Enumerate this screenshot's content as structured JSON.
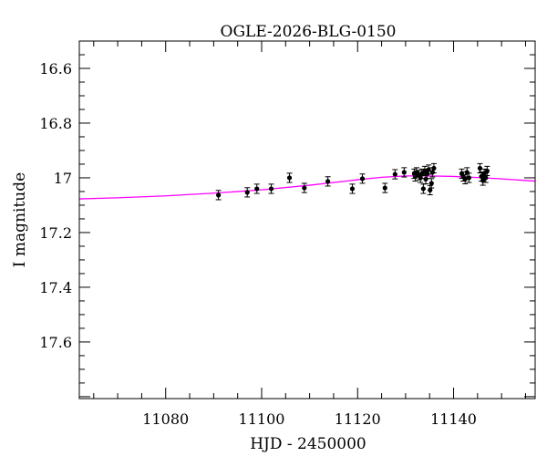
{
  "chart_data": {
    "type": "scatter",
    "title": "OGLE-2026-BLG-0150",
    "xlabel": "HJD - 2450000",
    "ylabel": "I magnitude",
    "xlim": [
      11062,
      11157
    ],
    "ylim": [
      17.807,
      16.5
    ],
    "y_inverted": true,
    "xticks": [
      11080,
      11100,
      11120,
      11140
    ],
    "xtick_labels": [
      "11080",
      "11100",
      "11120",
      "11140"
    ],
    "yticks": [
      16.6,
      16.8,
      17.0,
      17.2,
      17.4,
      17.6
    ],
    "ytick_labels": [
      "16.6",
      "16.8",
      "17",
      "17.2",
      "17.4",
      "17.6"
    ],
    "grid": false,
    "model_color": "#ff00ff",
    "point_color": "#000000",
    "series": [
      {
        "name": "data",
        "x": [
          11091.0,
          11097.0,
          11099.0,
          11102.0,
          11105.8,
          11108.9,
          11113.8,
          11118.9,
          11121.0,
          11125.7,
          11127.8,
          11129.7,
          11131.8,
          11132.0,
          11132.3,
          11132.8,
          11133.1,
          11133.4,
          11133.7,
          11134.0,
          11134.2,
          11134.5,
          11134.8,
          11135.1,
          11135.4,
          11135.6,
          11135.9,
          11141.7,
          11142.0,
          11142.4,
          11142.8,
          11143.2,
          11145.5,
          11145.8,
          11146.1,
          11146.4,
          11146.7,
          11147.0
        ],
        "y": [
          17.063,
          17.053,
          17.04,
          17.04,
          17.0,
          17.037,
          17.013,
          17.04,
          17.003,
          17.037,
          16.987,
          16.98,
          16.985,
          16.995,
          16.98,
          16.99,
          17.0,
          16.985,
          17.04,
          16.975,
          17.005,
          16.985,
          16.97,
          17.045,
          17.02,
          16.98,
          16.965,
          16.985,
          16.995,
          17.005,
          16.98,
          17.0,
          16.965,
          16.995,
          17.01,
          16.985,
          17.0,
          16.975
        ],
        "yerr": 0.017
      },
      {
        "name": "model",
        "type": "line",
        "x": [
          11062,
          11070,
          11080,
          11090,
          11100,
          11110,
          11120,
          11125,
          11130,
          11135,
          11140,
          11145,
          11150,
          11157
        ],
        "y": [
          17.077,
          17.073,
          17.066,
          17.056,
          17.044,
          17.027,
          17.007,
          16.998,
          16.993,
          16.993,
          16.995,
          16.999,
          17.004,
          17.012
        ]
      }
    ]
  }
}
